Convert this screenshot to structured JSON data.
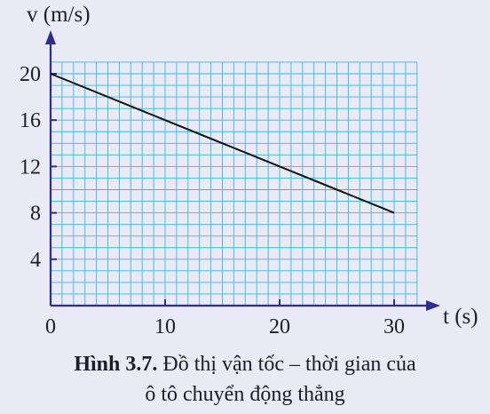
{
  "chart_data": {
    "type": "line",
    "title": "",
    "xlabel": "t (s)",
    "ylabel": "v (m/s)",
    "xlim": [
      0,
      32
    ],
    "ylim": [
      0,
      21
    ],
    "x_ticks": [
      0,
      10,
      20,
      30
    ],
    "x_tick_labels": [
      "0",
      "10",
      "20",
      "30"
    ],
    "y_ticks": [
      4,
      8,
      12,
      16,
      20
    ],
    "y_tick_labels": [
      "4",
      "8",
      "12",
      "16",
      "20"
    ],
    "grid": true,
    "series": [
      {
        "x": [
          0,
          30
        ],
        "y": [
          20,
          8
        ]
      }
    ],
    "colors": {
      "grid": "#38b8e6",
      "axis": "#2e2f8a",
      "line": "#111111",
      "background": "#e9eaf5"
    }
  },
  "caption": {
    "label": "Hình 3.7.",
    "line1": "Đồ thị vận tốc – thời gian của",
    "line2": "ô tô chuyển động thẳng"
  }
}
